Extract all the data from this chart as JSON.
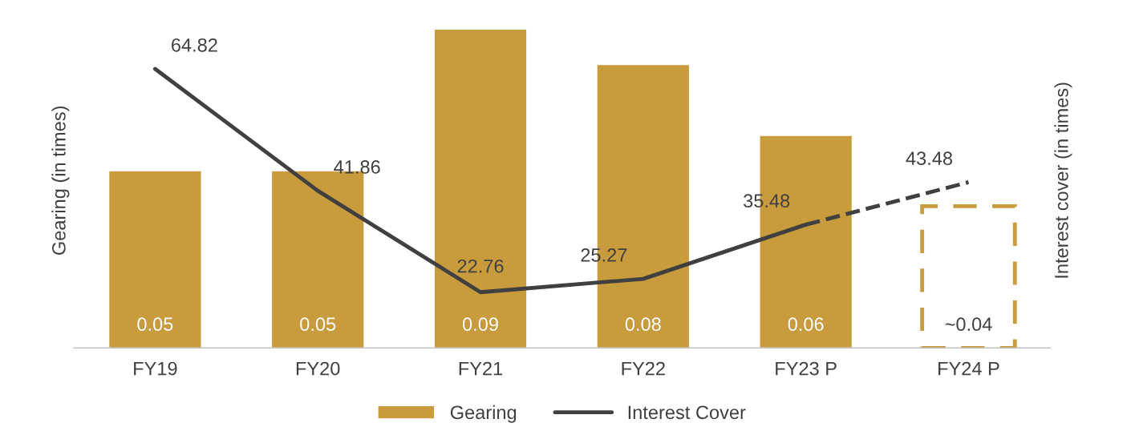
{
  "chart_data": {
    "type": "bar",
    "ylabel": "Gearing (in times)",
    "y2label": "Interest cover (in times)",
    "categories": [
      "FY19",
      "FY20",
      "FY21",
      "FY22",
      "FY23 P",
      "FY24 P"
    ],
    "tick_labels": "x",
    "legend": "bottom",
    "series": [
      {
        "name": "Gearing",
        "color": "#c89b3c",
        "values": [
          0.05,
          0.05,
          0.09,
          0.08,
          0.06,
          null
        ],
        "value_labels": [
          "0.05",
          "0.05",
          "0.09",
          "0.08",
          "0.06",
          null
        ]
      },
      {
        "color": "#c89b3c",
        "line_style": "dashed",
        "values": [
          null,
          null,
          null,
          null,
          null,
          0.04
        ],
        "value_labels": [
          null,
          null,
          null,
          null,
          null,
          "~0.04"
        ]
      },
      {
        "name": "Interest Cover",
        "type": "line",
        "axis": "y2",
        "color": "#404040",
        "line_style": "solid",
        "values": [
          64.82,
          41.86,
          22.76,
          25.27,
          35.48,
          null
        ],
        "value_labels": [
          "64.82",
          "41.86",
          "22.76",
          "25.27",
          null,
          null
        ]
      },
      {
        "type": "line",
        "axis": "y2",
        "color": "#404040",
        "line_style": "dashed",
        "values": [
          null,
          null,
          null,
          null,
          35.48,
          43.48
        ],
        "value_labels": [
          null,
          null,
          null,
          null,
          "35.48",
          "43.48"
        ]
      }
    ]
  }
}
